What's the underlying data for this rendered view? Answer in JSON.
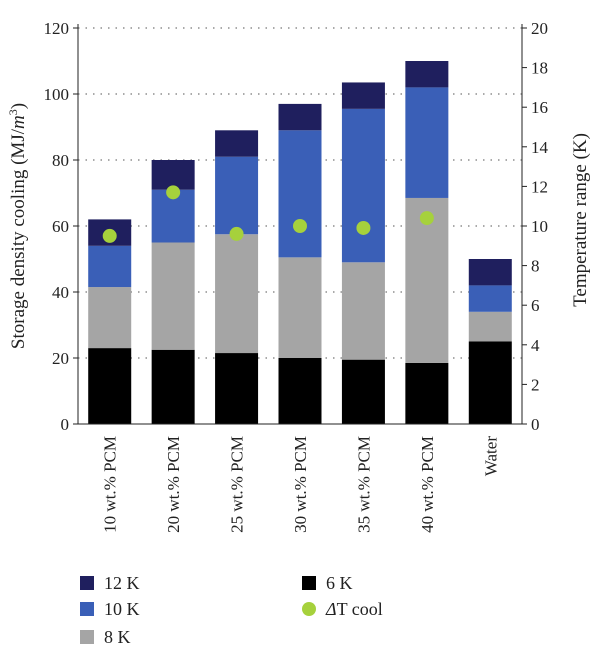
{
  "chart_data": {
    "type": "bar",
    "stacked": true,
    "categories": [
      "10 wt.% PCM",
      "20 wt.% PCM",
      "25 wt.% PCM",
      "30 wt.% PCM",
      "35 wt.% PCM",
      "40 wt.% PCM",
      "Water"
    ],
    "series": [
      {
        "name": "6 K",
        "color": "#000000",
        "values": [
          23,
          22.5,
          21.5,
          20,
          19.5,
          18.5,
          25
        ],
        "axis": "left"
      },
      {
        "name": "8 K",
        "color": "#a5a5a5",
        "values": [
          18.5,
          32.5,
          36,
          30.5,
          29.5,
          50,
          9
        ],
        "axis": "left"
      },
      {
        "name": "10 K",
        "color": "#3a5fb7",
        "values": [
          12.5,
          16,
          23.5,
          38.5,
          46.5,
          33.5,
          8
        ],
        "axis": "left"
      },
      {
        "name": "12 K",
        "color": "#1f1f5e",
        "values": [
          8,
          9,
          8,
          8,
          8,
          8,
          8
        ],
        "axis": "left"
      },
      {
        "name": "ΔT cool",
        "color": "#a6d13c",
        "type": "scatter",
        "axis": "right",
        "values": [
          9.5,
          11.7,
          9.6,
          10,
          9.9,
          10.4,
          null
        ]
      }
    ],
    "ylabel": "Storage density cooling (MJ/m³)",
    "ylabel_parts": {
      "main": "Storage density cooling (MJ/",
      "unit": "m",
      "sup": "3",
      "end": ")"
    },
    "y2label": "Temperature range (K)",
    "ylim": [
      0,
      120
    ],
    "y2lim": [
      0,
      20
    ],
    "yticks": [
      0,
      20,
      40,
      60,
      80,
      100,
      120
    ],
    "y2ticks": [
      0,
      2,
      4,
      6,
      8,
      10,
      12,
      14,
      16,
      18,
      20
    ],
    "grid": "horizontal dotted",
    "legend": {
      "placement": "bottom",
      "entries": [
        {
          "label": "12 K",
          "color": "#1f1f5e",
          "marker": "square",
          "italic_prefix": ""
        },
        {
          "label": "6 K",
          "color": "#000000",
          "marker": "square",
          "italic_prefix": ""
        },
        {
          "label": "10 K",
          "color": "#3a5fb7",
          "marker": "square",
          "italic_prefix": ""
        },
        {
          "label": "T cool",
          "color": "#a6d13c",
          "marker": "circle",
          "italic_prefix": "Δ"
        },
        {
          "label": "8 K",
          "color": "#a5a5a5",
          "marker": "square",
          "italic_prefix": ""
        }
      ]
    }
  }
}
